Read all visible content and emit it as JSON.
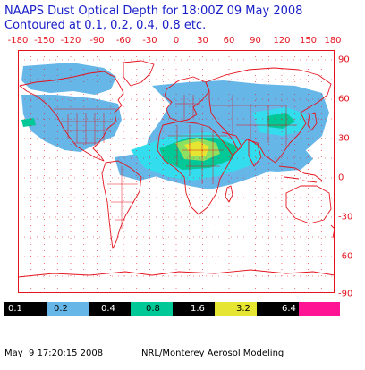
{
  "title": {
    "line1": "NAAPS Dust Optical Depth for 18:00Z 09 May 2008",
    "line2": "Contoured at 0.1, 0.2, 0.4, 0.8 etc."
  },
  "map": {
    "lon_labels": [
      "-180",
      "-150",
      "-120",
      "-90",
      "-60",
      "-30",
      "0",
      "30",
      "60",
      "90",
      "120",
      "150",
      "180"
    ],
    "lat_labels": [
      "90",
      "60",
      "30",
      "0",
      "-30",
      "-60",
      "-90"
    ],
    "colors": {
      "frame": "#e4141e",
      "coast": "#e4141e",
      "grid": "#e4141e",
      "title": "#1a20c8"
    }
  },
  "legend": {
    "items": [
      {
        "label": "0.1",
        "color": "#000000",
        "text_color": "#ffffff"
      },
      {
        "label": "0.2",
        "color": "#67b6e8",
        "text_color": "#000000"
      },
      {
        "label": "0.4",
        "color": "#000000",
        "text_color": "#ffffff"
      },
      {
        "label": "0.8",
        "color": "#00c896",
        "text_color": "#000000"
      },
      {
        "label": "1.6",
        "color": "#000000",
        "text_color": "#ffffff"
      },
      {
        "label": "3.2",
        "color": "#e6e632",
        "text_color": "#000000"
      },
      {
        "label": "6.4",
        "color": "#000000",
        "text_color": "#ffffff"
      },
      {
        "label": "",
        "color": "#ff1493",
        "text_color": "#000000"
      }
    ]
  },
  "footer": {
    "timestamp": "May  9 17:20:15 2008",
    "credit": "NRL/Monterey Aerosol Modeling"
  }
}
